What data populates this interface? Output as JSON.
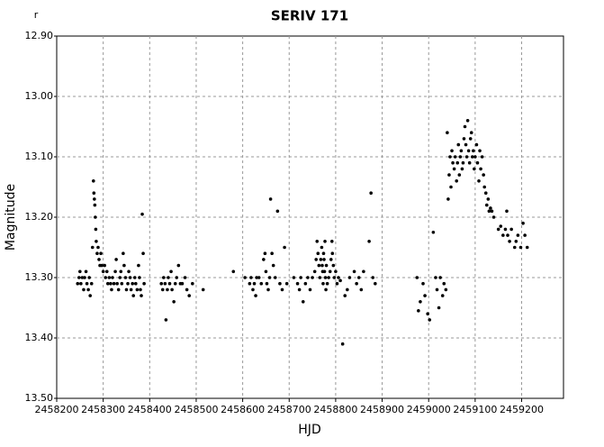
{
  "chart_data": {
    "type": "scatter",
    "title": "SERIV 171",
    "corner_label": "r",
    "x_label": "HJD",
    "y_label": "Magnitude",
    "color": "#000000",
    "grid": true,
    "y_inverted": true,
    "xlim": [
      2458200,
      2459290
    ],
    "xticks": [
      2458200,
      2458300,
      2458400,
      2458500,
      2458600,
      2458700,
      2458800,
      2458900,
      2459000,
      2459100,
      2459200
    ],
    "ylim": [
      12.9,
      13.5
    ],
    "yticks": [
      {
        "value": 12.9,
        "label": "12.90"
      },
      {
        "value": 13.0,
        "label": "13.00"
      },
      {
        "value": 13.1,
        "label": "13.10"
      },
      {
        "value": 13.2,
        "label": "13.20"
      },
      {
        "value": 13.3,
        "label": "13.30"
      },
      {
        "value": 13.4,
        "label": "13.40"
      },
      {
        "value": 13.5,
        "label": "13.50"
      }
    ],
    "x": [
      2458245,
      2458248,
      2458250,
      2458252,
      2458255,
      2458258,
      2458260,
      2458263,
      2458265,
      2458268,
      2458270,
      2458272,
      2458275,
      2458277,
      2458279,
      2458280,
      2458281,
      2458282,
      2458283,
      2458284,
      2458285,
      2458287,
      2458289,
      2458291,
      2458293,
      2458295,
      2458297,
      2458300,
      2458303,
      2458305,
      2458308,
      2458310,
      2458313,
      2458316,
      2458318,
      2458320,
      2458323,
      2458326,
      2458328,
      2458330,
      2458333,
      2458336,
      2458338,
      2458340,
      2458343,
      2458345,
      2458348,
      2458350,
      2458353,
      2458355,
      2458358,
      2458360,
      2458363,
      2458365,
      2458368,
      2458370,
      2458373,
      2458376,
      2458378,
      2458380,
      2458382,
      2458384,
      2458386,
      2458388,
      2458425,
      2458428,
      2458430,
      2458433,
      2458435,
      2458438,
      2458440,
      2458443,
      2458446,
      2458448,
      2458452,
      2458455,
      2458458,
      2458462,
      2458466,
      2458470,
      2458476,
      2458480,
      2458485,
      2458492,
      2458515,
      2458580,
      2458605,
      2458615,
      2458618,
      2458622,
      2458625,
      2458628,
      2458630,
      2458635,
      2458640,
      2458645,
      2458648,
      2458650,
      2458652,
      2458655,
      2458658,
      2458660,
      2458663,
      2458666,
      2458670,
      2458675,
      2458680,
      2458685,
      2458690,
      2458695,
      2458710,
      2458718,
      2458722,
      2458725,
      2458730,
      2458735,
      2458740,
      2458745,
      2458750,
      2458755,
      2458758,
      2458760,
      2458762,
      2458764,
      2458766,
      2458768,
      2458770,
      2458771,
      2458772,
      2458773,
      2458774,
      2458775,
      2458776,
      2458777,
      2458778,
      2458779,
      2458780,
      2458782,
      2458785,
      2458788,
      2458790,
      2458792,
      2458793,
      2458795,
      2458797,
      2458800,
      2458803,
      2458806,
      2458810,
      2458815,
      2458820,
      2458825,
      2458830,
      2458840,
      2458845,
      2458850,
      2458855,
      2458860,
      2458872,
      2458876,
      2458880,
      2458885,
      2458975,
      2458978,
      2458982,
      2458988,
      2458992,
      2458998,
      2459002,
      2459010,
      2459015,
      2459018,
      2459022,
      2459025,
      2459030,
      2459033,
      2459037,
      2459040,
      2459042,
      2459044,
      2459046,
      2459048,
      2459050,
      2459052,
      2459055,
      2459057,
      2459060,
      2459062,
      2459064,
      2459066,
      2459068,
      2459070,
      2459072,
      2459074,
      2459076,
      2459078,
      2459080,
      2459082,
      2459084,
      2459086,
      2459088,
      2459090,
      2459092,
      2459094,
      2459096,
      2459098,
      2459100,
      2459103,
      2459105,
      2459108,
      2459110,
      2459112,
      2459115,
      2459118,
      2459120,
      2459123,
      2459125,
      2459128,
      2459130,
      2459133,
      2459136,
      2459140,
      2459150,
      2459155,
      2459160,
      2459165,
      2459168,
      2459170,
      2459174,
      2459178,
      2459185,
      2459188,
      2459192,
      2459198,
      2459203,
      2459207,
      2459212
    ],
    "values": [
      13.31,
      13.3,
      13.29,
      13.31,
      13.3,
      13.32,
      13.3,
      13.29,
      13.31,
      13.32,
      13.3,
      13.33,
      13.31,
      13.25,
      13.14,
      13.16,
      13.17,
      13.18,
      13.2,
      13.22,
      13.24,
      13.26,
      13.25,
      13.27,
      13.28,
      13.26,
      13.28,
      13.29,
      13.28,
      13.3,
      13.29,
      13.31,
      13.3,
      13.31,
      13.32,
      13.3,
      13.31,
      13.29,
      13.27,
      13.31,
      13.32,
      13.3,
      13.29,
      13.31,
      13.26,
      13.28,
      13.3,
      13.32,
      13.31,
      13.29,
      13.3,
      13.32,
      13.31,
      13.33,
      13.3,
      13.31,
      13.32,
      13.28,
      13.3,
      13.32,
      13.33,
      13.195,
      13.26,
      13.31,
      13.31,
      13.32,
      13.3,
      13.31,
      13.37,
      13.32,
      13.3,
      13.31,
      13.29,
      13.32,
      13.34,
      13.31,
      13.3,
      13.28,
      13.31,
      13.31,
      13.3,
      13.32,
      13.33,
      13.31,
      13.32,
      13.29,
      13.3,
      13.31,
      13.3,
      13.32,
      13.31,
      13.33,
      13.3,
      13.3,
      13.31,
      13.27,
      13.26,
      13.29,
      13.31,
      13.32,
      13.3,
      13.17,
      13.26,
      13.28,
      13.3,
      13.19,
      13.31,
      13.32,
      13.25,
      13.31,
      13.3,
      13.31,
      13.32,
      13.3,
      13.34,
      13.31,
      13.3,
      13.32,
      13.3,
      13.29,
      13.27,
      13.24,
      13.26,
      13.28,
      13.3,
      13.27,
      13.25,
      13.28,
      13.29,
      13.31,
      13.26,
      13.27,
      13.29,
      13.24,
      13.3,
      13.32,
      13.28,
      13.31,
      13.3,
      13.29,
      13.27,
      13.24,
      13.26,
      13.28,
      13.3,
      13.29,
      13.31,
      13.3,
      13.305,
      13.41,
      13.33,
      13.32,
      13.3,
      13.29,
      13.31,
      13.3,
      13.32,
      13.29,
      13.24,
      13.16,
      13.3,
      13.31,
      13.3,
      13.355,
      13.34,
      13.31,
      13.33,
      13.36,
      13.37,
      13.225,
      13.3,
      13.32,
      13.35,
      13.3,
      13.33,
      13.31,
      13.32,
      13.06,
      13.17,
      13.13,
      13.1,
      13.15,
      13.09,
      13.11,
      13.12,
      13.1,
      13.14,
      13.11,
      13.08,
      13.13,
      13.1,
      13.09,
      13.12,
      13.11,
      13.07,
      13.05,
      13.08,
      13.1,
      13.04,
      13.09,
      13.11,
      13.07,
      13.06,
      13.1,
      13.09,
      13.12,
      13.1,
      13.08,
      13.11,
      13.14,
      13.09,
      13.12,
      13.1,
      13.13,
      13.15,
      13.16,
      13.18,
      13.17,
      13.19,
      13.185,
      13.19,
      13.2,
      13.22,
      13.215,
      13.23,
      13.22,
      13.19,
      13.23,
      13.24,
      13.22,
      13.25,
      13.24,
      13.23,
      13.25,
      13.21,
      13.23,
      13.25
    ]
  }
}
